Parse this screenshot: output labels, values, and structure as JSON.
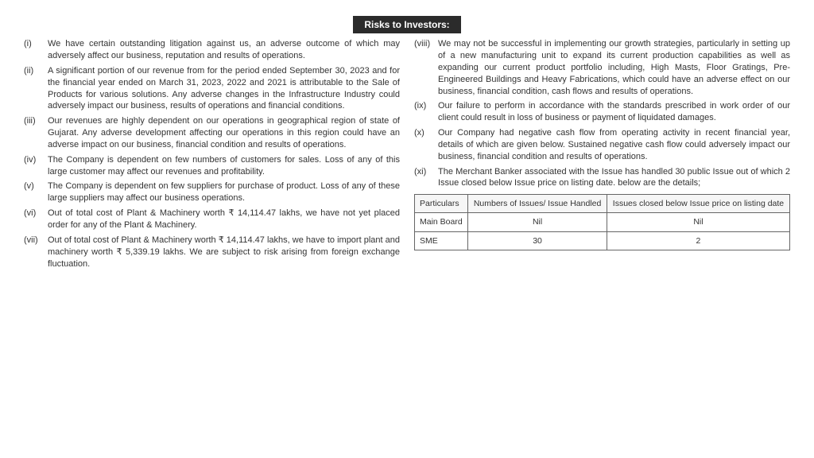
{
  "header": {
    "title": "Risks to Investors:"
  },
  "left_items": [
    {
      "num": "(i)",
      "text": "We have certain outstanding litigation against us, an adverse outcome of which may adversely affect our business, reputation and results of operations."
    },
    {
      "num": "(ii)",
      "text": "A significant portion of our revenue from for the period ended September 30, 2023 and for the financial year ended on March 31, 2023, 2022 and 2021 is attributable to the Sale of Products for various solutions. Any adverse changes in the Infrastructure Industry could adversely impact our business, results of operations and financial conditions."
    },
    {
      "num": "(iii)",
      "text": "Our revenues are highly dependent on our operations in geographical region of state of Gujarat. Any adverse development affecting our operations in this region could have an adverse impact on our business, financial condition and results of operations."
    },
    {
      "num": "(iv)",
      "text": "The Company is dependent on few numbers of customers for sales. Loss of any of this large customer may affect our revenues and profitability."
    },
    {
      "num": "(v)",
      "text": "The Company is dependent on few suppliers for purchase of product. Loss of any of these large suppliers may affect our business operations."
    },
    {
      "num": "(vi)",
      "text": "Out of total cost of Plant & Machinery worth ₹ 14,114.47 lakhs, we have not yet placed order for any of the Plant & Machinery."
    },
    {
      "num": "(vii)",
      "text": "Out of total cost of Plant & Machinery worth ₹ 14,114.47 lakhs, we have to import plant and machinery worth ₹ 5,339.19 lakhs. We are subject to risk arising from foreign exchange fluctuation."
    }
  ],
  "right_items": [
    {
      "num": "(viii)",
      "text": "We may not be successful in implementing our growth strategies, particularly in setting up of a new manufacturing unit to expand its current production capabilities as well as expanding our current product portfolio including, High Masts, Floor Gratings, Pre-Engineered Buildings and Heavy Fabrications, which could have an adverse effect on our business, financial condition, cash flows and results of operations."
    },
    {
      "num": "(ix)",
      "text": "Our failure to perform in accordance with the standards prescribed in work order of our client could result in loss of business or payment of liquidated damages."
    },
    {
      "num": "(x)",
      "text": "Our Company had negative cash flow from operating activity in recent financial year, details of which are given below. Sustained negative cash flow could adversely impact our business, financial condition and results of operations."
    },
    {
      "num": "(xi)",
      "text": "The Merchant Banker associated with the Issue has handled 30 public Issue out of which 2 Issue closed below Issue price on listing date. below are the details;"
    }
  ],
  "table": {
    "headers": [
      "Particulars",
      "Numbers of Issues/ Issue Handled",
      "Issues closed below Issue price on listing date"
    ],
    "rows": [
      [
        "Main Board",
        "Nil",
        "Nil"
      ],
      [
        "SME",
        "30",
        "2"
      ]
    ]
  },
  "colors": {
    "text": "#333333",
    "header_bg": "#2b2b2b",
    "header_fg": "#ffffff",
    "border": "#666666"
  }
}
